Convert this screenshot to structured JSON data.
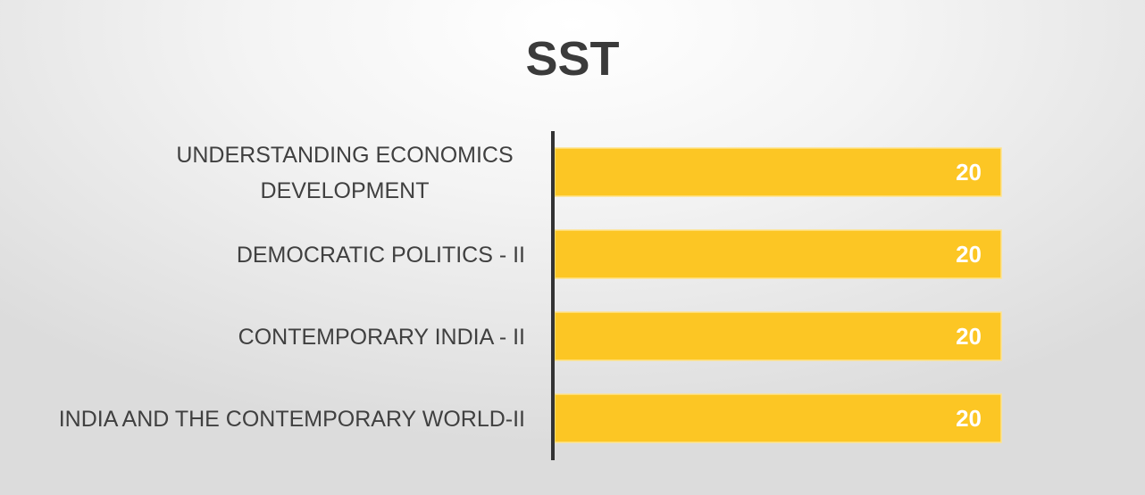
{
  "chart_data": {
    "type": "bar",
    "orientation": "horizontal",
    "title": "SST",
    "categories": [
      [
        "UNDERSTANDING ECONOMICS",
        "DEVELOPMENT"
      ],
      [
        "DEMOCRATIC POLITICS - II"
      ],
      [
        "CONTEMPORARY INDIA - II"
      ],
      [
        "INDIA AND THE CONTEMPORARY WORLD-II"
      ]
    ],
    "values": [
      20,
      20,
      20,
      20
    ],
    "data_labels": [
      "20",
      "20",
      "20",
      "20"
    ],
    "xlim": [
      0,
      20
    ],
    "grid": false,
    "legend": "none",
    "colors": {
      "bar": "#FCC624",
      "bar_edge": "#FFE38A",
      "axis": "#333333",
      "label": "#404040",
      "title": "#3b3b3b",
      "data_label": "#ffffff"
    }
  }
}
